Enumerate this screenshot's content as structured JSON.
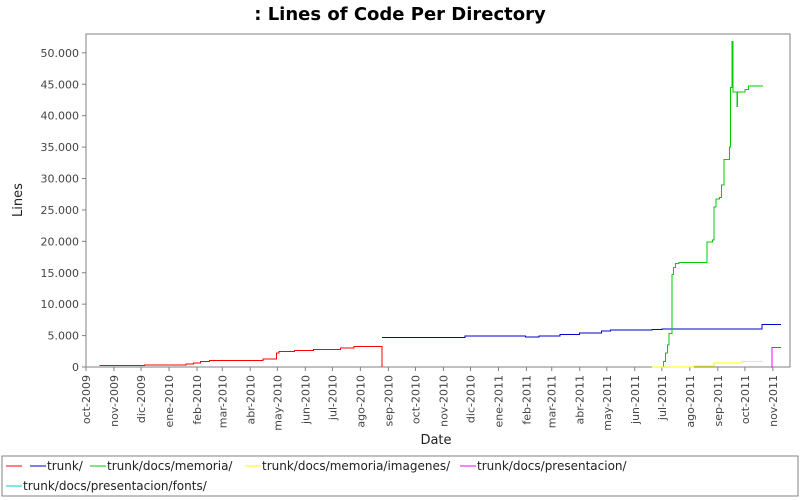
{
  "chart_data": {
    "type": "line",
    "title": ": Lines of Code Per Directory",
    "xlabel": "Date",
    "ylabel": "Lines",
    "ylim": [
      0,
      53000
    ],
    "yticks": [
      0,
      5000,
      10000,
      15000,
      20000,
      25000,
      30000,
      35000,
      40000,
      45000,
      50000
    ],
    "ytick_labels": [
      "0",
      "5.000",
      "10.000",
      "15.000",
      "20.000",
      "25.000",
      "30.000",
      "35.000",
      "40.000",
      "45.000",
      "50.000"
    ],
    "xlim": [
      "2009-10-01",
      "2011-11-20"
    ],
    "xticks": [
      "2009-10-01",
      "2009-11-01",
      "2009-12-01",
      "2010-01-01",
      "2010-02-01",
      "2010-03-01",
      "2010-04-01",
      "2010-05-01",
      "2010-06-01",
      "2010-07-01",
      "2010-08-01",
      "2010-09-01",
      "2010-10-01",
      "2010-11-01",
      "2010-12-01",
      "2011-01-01",
      "2011-02-01",
      "2011-03-01",
      "2011-04-01",
      "2011-05-01",
      "2011-06-01",
      "2011-07-01",
      "2011-08-01",
      "2011-09-01",
      "2011-10-01",
      "2011-11-01"
    ],
    "xtick_labels": [
      "oct-2009",
      "nov-2009",
      "dic-2009",
      "ene-2010",
      "feb-2010",
      "mar-2010",
      "abr-2010",
      "may-2010",
      "jun-2010",
      "jul-2010",
      "ago-2010",
      "sep-2010",
      "oct-2010",
      "nov-2010",
      "dic-2010",
      "ene-2011",
      "feb-2011",
      "mar-2011",
      "abr-2011",
      "may-2011",
      "jun-2011",
      "jul-2011",
      "ago-2011",
      "sep-2011",
      "oct-2011",
      "nov-2011"
    ],
    "grid": false,
    "legend_position": "bottom",
    "series": [
      {
        "name": "",
        "color": "#ff0000",
        "step": true,
        "points": [
          [
            "2009-10-16",
            200
          ],
          [
            "2009-12-05",
            300
          ],
          [
            "2010-01-20",
            450
          ],
          [
            "2010-01-28",
            650
          ],
          [
            "2010-02-05",
            900
          ],
          [
            "2010-02-15",
            1050
          ],
          [
            "2010-04-15",
            1250
          ],
          [
            "2010-04-30",
            2200
          ],
          [
            "2010-05-03",
            2500
          ],
          [
            "2010-05-20",
            2650
          ],
          [
            "2010-06-10",
            2800
          ],
          [
            "2010-07-10",
            3000
          ],
          [
            "2010-07-25",
            3300
          ],
          [
            "2010-08-25",
            3300
          ],
          [
            "2010-08-25",
            0
          ]
        ]
      },
      {
        "name": "trunk/",
        "color": "#0000cc",
        "step": true,
        "points": [
          [
            "2010-08-25",
            4700
          ],
          [
            "2010-11-25",
            4900
          ],
          [
            "2011-01-31",
            4750
          ],
          [
            "2011-02-15",
            4950
          ],
          [
            "2011-03-10",
            5200
          ],
          [
            "2011-04-01",
            5450
          ],
          [
            "2011-04-25",
            5700
          ],
          [
            "2011-05-05",
            5850
          ],
          [
            "2011-06-20",
            6000
          ],
          [
            "2011-07-01",
            6050
          ],
          [
            "2011-10-20",
            6750
          ],
          [
            "2011-11-10",
            6750
          ]
        ]
      },
      {
        "name": "trunk/docs/memoria/",
        "color": "#00cc00",
        "step": true,
        "points": [
          [
            "2011-07-01",
            0
          ],
          [
            "2011-07-03",
            900
          ],
          [
            "2011-07-05",
            2200
          ],
          [
            "2011-07-07",
            3500
          ],
          [
            "2011-07-09",
            5300
          ],
          [
            "2011-07-12",
            14700
          ],
          [
            "2011-07-14",
            15800
          ],
          [
            "2011-07-16",
            16500
          ],
          [
            "2011-07-20",
            16600
          ],
          [
            "2011-08-20",
            19900
          ],
          [
            "2011-08-26",
            20200
          ],
          [
            "2011-08-28",
            25500
          ],
          [
            "2011-08-30",
            26700
          ],
          [
            "2011-09-03",
            27000
          ],
          [
            "2011-09-05",
            29000
          ],
          [
            "2011-09-08",
            33000
          ],
          [
            "2011-09-14",
            35000
          ],
          [
            "2011-09-15",
            44500
          ],
          [
            "2011-09-17",
            51800
          ],
          [
            "2011-09-18",
            43800
          ],
          [
            "2011-09-22",
            41500
          ],
          [
            "2011-09-23",
            43800
          ],
          [
            "2011-10-01",
            44200
          ],
          [
            "2011-10-05",
            44700
          ],
          [
            "2011-10-21",
            44700
          ]
        ]
      },
      {
        "name": "trunk/docs/memoria/imagenes/",
        "color": "#ffff00",
        "step": true,
        "points": [
          [
            "2011-06-20",
            0
          ],
          [
            "2011-08-05",
            150
          ],
          [
            "2011-08-28",
            600
          ],
          [
            "2011-09-28",
            900
          ],
          [
            "2011-10-20",
            900
          ]
        ]
      },
      {
        "name": "trunk/docs/presentacion/",
        "color": "#ff00ff",
        "step": true,
        "points": [
          [
            "2011-10-30",
            0
          ],
          [
            "2011-10-31",
            3100
          ],
          [
            "2011-11-10",
            3100
          ]
        ]
      },
      {
        "name": "trunk/docs/presentacion/fonts/",
        "color": "#00cccc",
        "step": true,
        "points": []
      }
    ]
  }
}
